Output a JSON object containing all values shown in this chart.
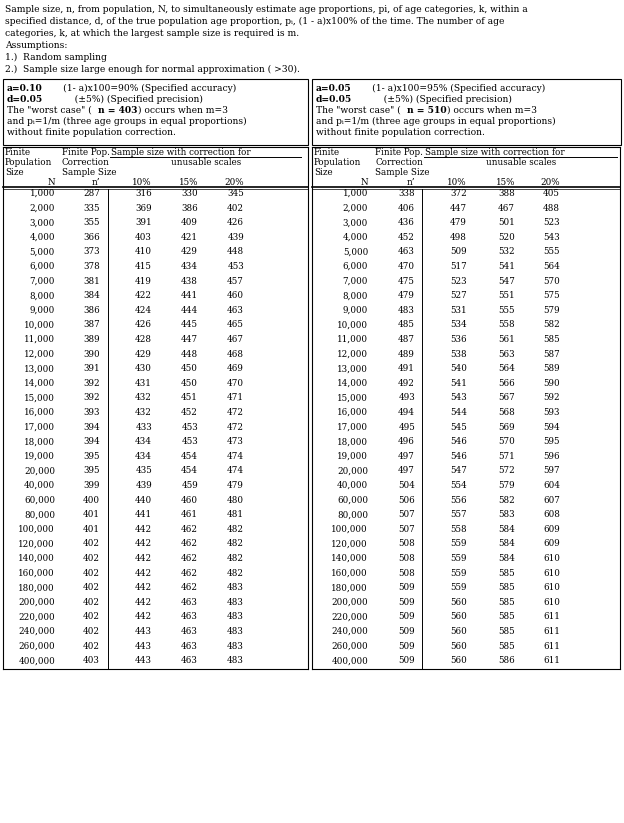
{
  "header_lines": [
    "Sample size, n, from population, N, to simultaneously estimate age proportions, pi, of age categories, k, within a",
    "specified distance, d, of the true population age proportion, pᵢ, (1 - a)x100% of the time. The number of age",
    "categories, k, at which the largest sample size is required is m."
  ],
  "assumption_lines": [
    "Assumptions:",
    "1.)  Random sampling",
    "2.)  Sample size large enough for normal approximation ( >30)."
  ],
  "left_data": [
    [
      "1,000",
      "287",
      "316",
      "330",
      "345"
    ],
    [
      "2,000",
      "335",
      "369",
      "386",
      "402"
    ],
    [
      "3,000",
      "355",
      "391",
      "409",
      "426"
    ],
    [
      "4,000",
      "366",
      "403",
      "421",
      "439"
    ],
    [
      "5,000",
      "373",
      "410",
      "429",
      "448"
    ],
    [
      "6,000",
      "378",
      "415",
      "434",
      "453"
    ],
    [
      "7,000",
      "381",
      "419",
      "438",
      "457"
    ],
    [
      "8,000",
      "384",
      "422",
      "441",
      "460"
    ],
    [
      "9,000",
      "386",
      "424",
      "444",
      "463"
    ],
    [
      "10,000",
      "387",
      "426",
      "445",
      "465"
    ],
    [
      "11,000",
      "389",
      "428",
      "447",
      "467"
    ],
    [
      "12,000",
      "390",
      "429",
      "448",
      "468"
    ],
    [
      "13,000",
      "391",
      "430",
      "450",
      "469"
    ],
    [
      "14,000",
      "392",
      "431",
      "450",
      "470"
    ],
    [
      "15,000",
      "392",
      "432",
      "451",
      "471"
    ],
    [
      "16,000",
      "393",
      "432",
      "452",
      "472"
    ],
    [
      "17,000",
      "394",
      "433",
      "453",
      "472"
    ],
    [
      "18,000",
      "394",
      "434",
      "453",
      "473"
    ],
    [
      "19,000",
      "395",
      "434",
      "454",
      "474"
    ],
    [
      "20,000",
      "395",
      "435",
      "454",
      "474"
    ],
    [
      "40,000",
      "399",
      "439",
      "459",
      "479"
    ],
    [
      "60,000",
      "400",
      "440",
      "460",
      "480"
    ],
    [
      "80,000",
      "401",
      "441",
      "461",
      "481"
    ],
    [
      "100,000",
      "401",
      "442",
      "462",
      "482"
    ],
    [
      "120,000",
      "402",
      "442",
      "462",
      "482"
    ],
    [
      "140,000",
      "402",
      "442",
      "462",
      "482"
    ],
    [
      "160,000",
      "402",
      "442",
      "462",
      "482"
    ],
    [
      "180,000",
      "402",
      "442",
      "462",
      "483"
    ],
    [
      "200,000",
      "402",
      "442",
      "463",
      "483"
    ],
    [
      "220,000",
      "402",
      "442",
      "463",
      "483"
    ],
    [
      "240,000",
      "402",
      "443",
      "463",
      "483"
    ],
    [
      "260,000",
      "402",
      "443",
      "463",
      "483"
    ],
    [
      "400,000",
      "403",
      "443",
      "463",
      "483"
    ]
  ],
  "right_data": [
    [
      "1,000",
      "338",
      "372",
      "388",
      "405"
    ],
    [
      "2,000",
      "406",
      "447",
      "467",
      "488"
    ],
    [
      "3,000",
      "436",
      "479",
      "501",
      "523"
    ],
    [
      "4,000",
      "452",
      "498",
      "520",
      "543"
    ],
    [
      "5,000",
      "463",
      "509",
      "532",
      "555"
    ],
    [
      "6,000",
      "470",
      "517",
      "541",
      "564"
    ],
    [
      "7,000",
      "475",
      "523",
      "547",
      "570"
    ],
    [
      "8,000",
      "479",
      "527",
      "551",
      "575"
    ],
    [
      "9,000",
      "483",
      "531",
      "555",
      "579"
    ],
    [
      "10,000",
      "485",
      "534",
      "558",
      "582"
    ],
    [
      "11,000",
      "487",
      "536",
      "561",
      "585"
    ],
    [
      "12,000",
      "489",
      "538",
      "563",
      "587"
    ],
    [
      "13,000",
      "491",
      "540",
      "564",
      "589"
    ],
    [
      "14,000",
      "492",
      "541",
      "566",
      "590"
    ],
    [
      "15,000",
      "493",
      "543",
      "567",
      "592"
    ],
    [
      "16,000",
      "494",
      "544",
      "568",
      "593"
    ],
    [
      "17,000",
      "495",
      "545",
      "569",
      "594"
    ],
    [
      "18,000",
      "496",
      "546",
      "570",
      "595"
    ],
    [
      "19,000",
      "497",
      "546",
      "571",
      "596"
    ],
    [
      "20,000",
      "497",
      "547",
      "572",
      "597"
    ],
    [
      "40,000",
      "504",
      "554",
      "579",
      "604"
    ],
    [
      "60,000",
      "506",
      "556",
      "582",
      "607"
    ],
    [
      "80,000",
      "507",
      "557",
      "583",
      "608"
    ],
    [
      "100,000",
      "507",
      "558",
      "584",
      "609"
    ],
    [
      "120,000",
      "508",
      "559",
      "584",
      "609"
    ],
    [
      "140,000",
      "508",
      "559",
      "584",
      "610"
    ],
    [
      "160,000",
      "508",
      "559",
      "585",
      "610"
    ],
    [
      "180,000",
      "509",
      "559",
      "585",
      "610"
    ],
    [
      "200,000",
      "509",
      "560",
      "585",
      "610"
    ],
    [
      "220,000",
      "509",
      "560",
      "585",
      "611"
    ],
    [
      "240,000",
      "509",
      "560",
      "585",
      "611"
    ],
    [
      "260,000",
      "509",
      "560",
      "585",
      "611"
    ],
    [
      "400,000",
      "509",
      "560",
      "586",
      "611"
    ]
  ],
  "bg_color": "#ffffff",
  "font_family": "DejaVu Serif"
}
